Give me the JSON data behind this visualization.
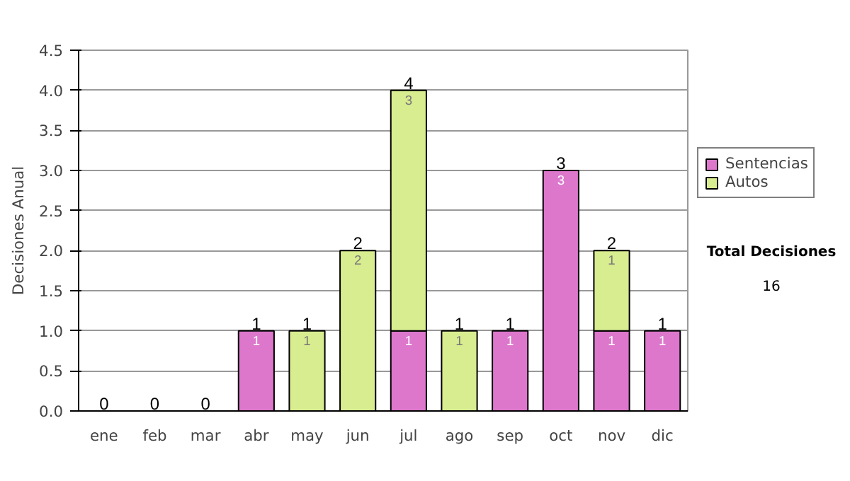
{
  "chart_data": {
    "type": "bar",
    "stacked": true,
    "ylabel": "Decisiones Anual",
    "categories": [
      "ene",
      "feb",
      "mar",
      "abr",
      "may",
      "jun",
      "jul",
      "ago",
      "sep",
      "oct",
      "nov",
      "dic"
    ],
    "series": [
      {
        "name": "Sentencias",
        "color": "#dd77cc",
        "values": [
          0,
          0,
          0,
          1,
          0,
          0,
          1,
          0,
          1,
          3,
          1,
          1
        ],
        "value_labels": [
          null,
          null,
          null,
          "1",
          null,
          null,
          "1",
          null,
          "1",
          "3",
          "1",
          "1"
        ]
      },
      {
        "name": "Autos",
        "color": "#d8ec90",
        "values": [
          0,
          0,
          0,
          0,
          1,
          2,
          3,
          1,
          0,
          0,
          1,
          0
        ],
        "value_labels": [
          null,
          null,
          null,
          null,
          "1",
          "2",
          "3",
          "1",
          null,
          null,
          "1",
          null
        ]
      }
    ],
    "ylim": [
      0,
      4.5
    ],
    "yticks": [
      {
        "value": 0,
        "label": "0.0"
      },
      {
        "value": 0.5,
        "label": "0.5"
      },
      {
        "value": 1,
        "label": "1.0"
      },
      {
        "value": 1.5,
        "label": "1.5"
      },
      {
        "value": 2,
        "label": "2.0"
      },
      {
        "value": 2.5,
        "label": "2.5"
      },
      {
        "value": 3,
        "label": "3.0"
      },
      {
        "value": 3.5,
        "label": "3.5"
      },
      {
        "value": 4,
        "label": "4.0"
      },
      {
        "value": 4.5,
        "label": "4.5"
      }
    ],
    "grid": "y",
    "legend": "right",
    "totals": [
      "0",
      "0",
      "0",
      "1",
      "1",
      "2",
      "4",
      "1",
      "1",
      "3",
      "2",
      "1"
    ],
    "annotations": [
      "Total Decisiones",
      "16"
    ]
  }
}
